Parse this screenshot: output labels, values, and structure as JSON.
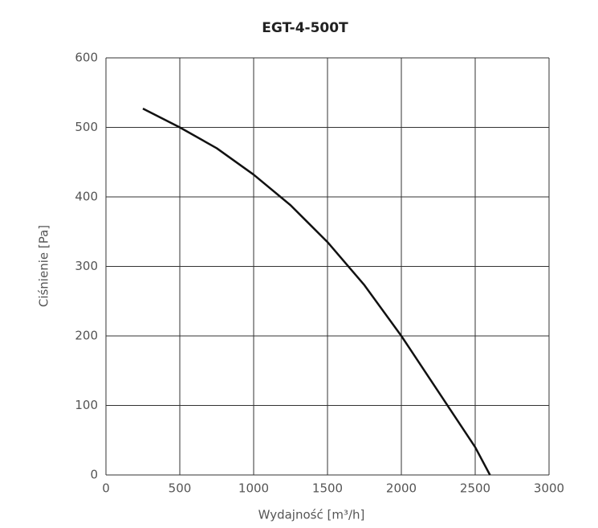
{
  "chart_data": {
    "type": "line",
    "title": "EGT-4-500T",
    "x_label": "Wydajność [m³/h]",
    "y_label": "Ciśnienie [Pa]",
    "x": [
      250,
      500,
      750,
      1000,
      1250,
      1500,
      1750,
      2000,
      2250,
      2500,
      2600
    ],
    "series": [
      {
        "name": "EGT-4-500T",
        "color": "#111111",
        "values": [
          527,
          500,
          470,
          432,
          388,
          335,
          273,
          200,
          120,
          40,
          0
        ]
      }
    ],
    "xlim": [
      0,
      3000
    ],
    "xticks": [
      0,
      500,
      1000,
      1500,
      2000,
      2500,
      3000
    ],
    "ylim": [
      0,
      600
    ],
    "yticks": [
      0,
      100,
      200,
      300,
      400,
      500,
      600
    ],
    "grid": true
  }
}
